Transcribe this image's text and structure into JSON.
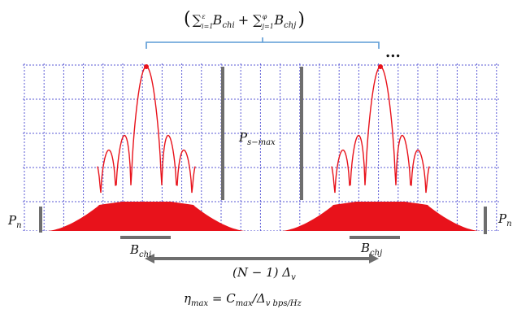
{
  "top_formula": {
    "open": "(",
    "sum1": "∑",
    "sum1_sup": "ε",
    "sum1_sub": "i=1",
    "term1": "B",
    "term1_sub": "chi",
    "plus": "+",
    "sum2": "∑",
    "sum2_sup": "φ",
    "sum2_sub": "j=1",
    "term2": "B",
    "term2_sub": "chj",
    "close": ")"
  },
  "ellipsis": "...",
  "peak_label": {
    "main": "P",
    "sub": "s−max"
  },
  "pn_left": {
    "main": "P",
    "sub": "n"
  },
  "pn_right": {
    "main": "P",
    "sub": "n"
  },
  "bch_left": {
    "main": "B",
    "sub": "chi"
  },
  "bch_right": {
    "main": "B",
    "sub": "chj"
  },
  "spacing_label": {
    "pre": "(N − 1) ",
    "main": "Δ",
    "sub": "v"
  },
  "efficiency": {
    "eta": "η",
    "eta_sub": "max",
    "eq": " = ",
    "c": "C",
    "c_sub": "max",
    "slash": "/",
    "delta": "Δ",
    "delta_sub": "v bps/Hz"
  },
  "colors": {
    "signal": "#e8121b",
    "grid": "#5a5ad6",
    "brace": "#5b9bd5",
    "bar": "#6e6e6e"
  }
}
